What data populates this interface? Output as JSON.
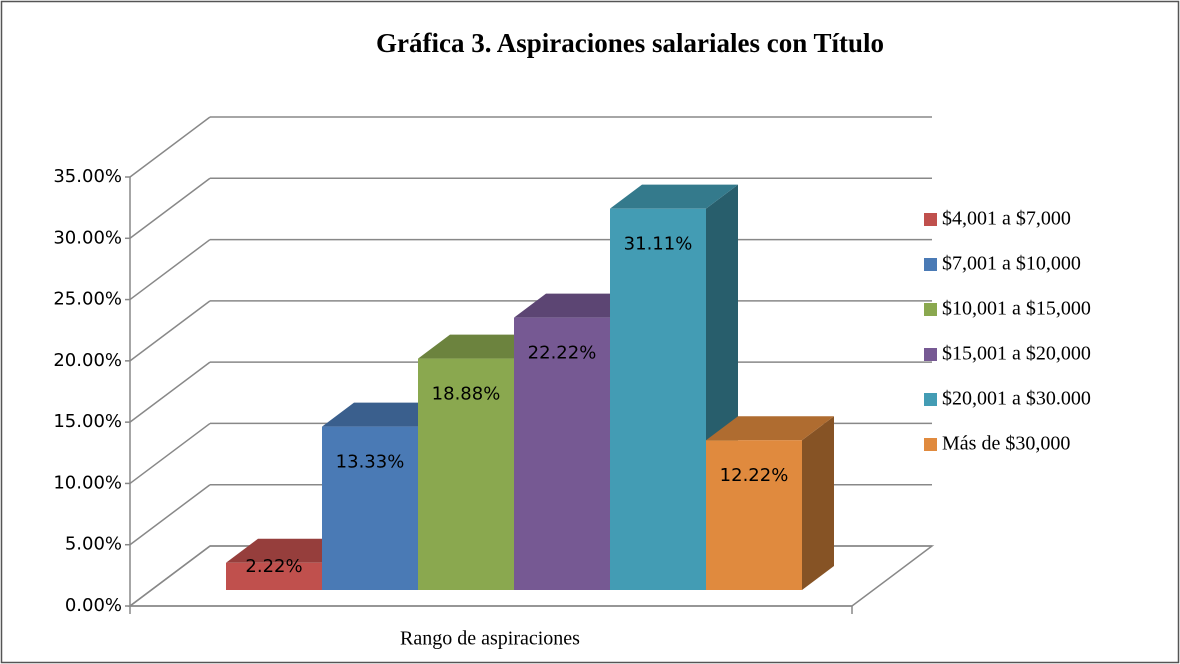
{
  "chart_data": {
    "type": "bar3d",
    "title": "Gráfica 3.  Aspiraciones salariales con Título",
    "x_label": "Rango de aspiraciones",
    "categories": [
      "Rango de aspiraciones"
    ],
    "series": [
      {
        "name": "$4,001 a $7,000",
        "color": "#c0504d",
        "values": [
          2.22
        ],
        "value_labels": [
          "2.22%"
        ]
      },
      {
        "name": "$7,001 a $10,000",
        "color": "#4a7ab5",
        "values": [
          13.33
        ],
        "value_labels": [
          "13.33%"
        ]
      },
      {
        "name": "$10,001 a $15,000",
        "color": "#8aa84f",
        "values": [
          18.88
        ],
        "value_labels": [
          "18.88%"
        ]
      },
      {
        "name": "$15,001 a $20,000",
        "color": "#765993",
        "values": [
          22.22
        ],
        "value_labels": [
          "22.22%"
        ]
      },
      {
        "name": "$20,001 a $30.000",
        "color": "#439cb4",
        "values": [
          31.11
        ],
        "value_labels": [
          "31.11%"
        ]
      },
      {
        "name": "Más de $30,000",
        "color": "#e08a3e",
        "values": [
          12.22
        ],
        "value_labels": [
          "12.22%"
        ]
      }
    ],
    "ylim": [
      0,
      35
    ],
    "yticks": [
      {
        "value": 0,
        "label": "0.00%"
      },
      {
        "value": 5,
        "label": "5.00%"
      },
      {
        "value": 10,
        "label": "10.00%"
      },
      {
        "value": 15,
        "label": "15.00%"
      },
      {
        "value": 20,
        "label": "20.00%"
      },
      {
        "value": 25,
        "label": "25.00%"
      },
      {
        "value": 30,
        "label": "30.00%"
      },
      {
        "value": 35,
        "label": "35.00%"
      }
    ],
    "grid": true,
    "legend": "right"
  }
}
